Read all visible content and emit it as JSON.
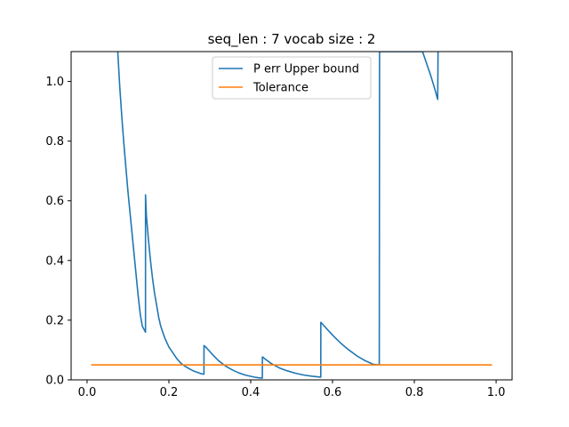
{
  "chart_data": {
    "type": "line",
    "title": "seq_len : 7 vocab size : 2",
    "xlabel": "",
    "ylabel": "",
    "xlim": [
      -0.039,
      1.039
    ],
    "ylim": [
      0,
      1.1
    ],
    "xticks": [
      0.0,
      0.2,
      0.4,
      0.6,
      0.8,
      1.0
    ],
    "xtick_labels": [
      "0.0",
      "0.2",
      "0.4",
      "0.6",
      "0.8",
      "1.0"
    ],
    "yticks": [
      0.0,
      0.2,
      0.4,
      0.6,
      0.8,
      1.0
    ],
    "ytick_labels": [
      "0.0",
      "0.2",
      "0.4",
      "0.6",
      "0.8",
      "1.0"
    ],
    "legend_position": "top-center",
    "grid": false,
    "series": [
      {
        "name": "P err Upper bound",
        "color": "#1f77b4",
        "x": [
          0.075,
          0.08,
          0.085,
          0.09,
          0.095,
          0.1,
          0.105,
          0.11,
          0.115,
          0.12,
          0.125,
          0.13,
          0.135,
          0.1428,
          0.1429,
          0.145,
          0.15,
          0.155,
          0.16,
          0.165,
          0.17,
          0.175,
          0.18,
          0.19,
          0.2,
          0.21,
          0.22,
          0.23,
          0.24,
          0.25,
          0.26,
          0.27,
          0.28,
          0.2857,
          0.2858,
          0.29,
          0.3,
          0.31,
          0.32,
          0.33,
          0.34,
          0.35,
          0.36,
          0.37,
          0.38,
          0.39,
          0.4,
          0.41,
          0.42,
          0.4285,
          0.4286,
          0.435,
          0.45,
          0.47,
          0.49,
          0.51,
          0.53,
          0.55,
          0.5713,
          0.5714,
          0.58,
          0.6,
          0.62,
          0.64,
          0.66,
          0.68,
          0.7,
          0.714,
          0.7143,
          0.715,
          0.82,
          0.83,
          0.84,
          0.85,
          0.857,
          0.8571,
          0.858,
          0.858
        ],
        "y": [
          1.1,
          0.98,
          0.88,
          0.79,
          0.71,
          0.63,
          0.56,
          0.49,
          0.42,
          0.35,
          0.28,
          0.22,
          0.18,
          0.16,
          0.62,
          0.55,
          0.47,
          0.4,
          0.34,
          0.29,
          0.25,
          0.21,
          0.18,
          0.14,
          0.11,
          0.09,
          0.07,
          0.055,
          0.045,
          0.037,
          0.03,
          0.025,
          0.02,
          0.019,
          0.115,
          0.11,
          0.095,
          0.08,
          0.066,
          0.055,
          0.045,
          0.037,
          0.03,
          0.024,
          0.019,
          0.015,
          0.012,
          0.009,
          0.007,
          0.006,
          0.077,
          0.07,
          0.055,
          0.04,
          0.03,
          0.022,
          0.016,
          0.012,
          0.009,
          0.193,
          0.18,
          0.15,
          0.123,
          0.1,
          0.08,
          0.064,
          0.052,
          0.05,
          0.05,
          1.1,
          1.1,
          1.06,
          1.02,
          0.975,
          0.94,
          0.94,
          1.1,
          1.1
        ]
      },
      {
        "name": "Tolerance",
        "color": "#ff7f0e",
        "x": [
          0.01,
          0.99
        ],
        "y": [
          0.05,
          0.05
        ]
      }
    ]
  }
}
